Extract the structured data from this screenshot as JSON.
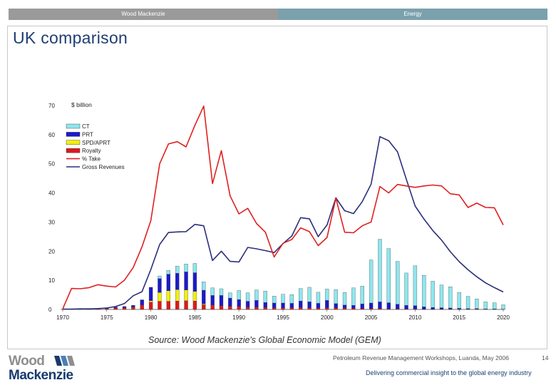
{
  "header": {
    "left_label": "Wood Mackenzie",
    "right_label": "Energy"
  },
  "title": "UK comparison",
  "source": "Source: Wood Mackenzie's Global Economic Model (GEM)",
  "footer": {
    "logo_word1": "Wood",
    "logo_word2": "Mackenzie",
    "meta": "Petroleum Revenue Management Workshops, Luanda, May 2006",
    "page": "14",
    "tagline": "Delivering commercial insight to the global energy industry"
  },
  "colors": {
    "ct": "#8ee6ee",
    "prt": "#1a1acc",
    "spd": "#f0f00a",
    "royalty": "#e01818",
    "take": "#e02020",
    "gross": "#2b2f7a",
    "header_left": "#9a9a9a",
    "header_right": "#7ba1ad"
  },
  "chart_data": {
    "type": "bar",
    "stacked_bars_with_lines": true,
    "unit_label": "$ billion",
    "ylim": [
      0,
      70
    ],
    "yticks": [
      "0",
      "10",
      "20",
      "30",
      "40",
      "50",
      "60",
      "70"
    ],
    "xlim": [
      1970,
      2020
    ],
    "xticks": [
      "1970",
      "1975",
      "1980",
      "1985",
      "1990",
      "1995",
      "2000",
      "2005",
      "2010",
      "2015",
      "2020"
    ],
    "legend": {
      "placement": "top-left",
      "items": [
        {
          "label": "CT",
          "kind": "box",
          "color": "#8ee6ee"
        },
        {
          "label": "PRT",
          "kind": "box",
          "color": "#1a1acc"
        },
        {
          "label": "SPD/APRT",
          "kind": "box",
          "color": "#f0f00a"
        },
        {
          "label": "Royalty",
          "kind": "box",
          "color": "#e01818"
        },
        {
          "label": "% Take",
          "kind": "line",
          "color": "#e02020"
        },
        {
          "label": "Gross Revenues",
          "kind": "line",
          "color": "#2b2f7a"
        }
      ]
    },
    "years": [
      1970,
      1971,
      1972,
      1973,
      1974,
      1975,
      1976,
      1977,
      1978,
      1979,
      1980,
      1981,
      1982,
      1983,
      1984,
      1985,
      1986,
      1987,
      1988,
      1989,
      1990,
      1991,
      1992,
      1993,
      1994,
      1995,
      1996,
      1997,
      1998,
      1999,
      2000,
      2001,
      2002,
      2003,
      2004,
      2005,
      2006,
      2007,
      2008,
      2009,
      2010,
      2011,
      2012,
      2013,
      2014,
      2015,
      2016,
      2017,
      2018,
      2019,
      2020
    ],
    "series": [
      {
        "name": "Royalty",
        "values": [
          0.1,
          0.1,
          0.1,
          0.1,
          0.2,
          0.3,
          0.5,
          0.6,
          0.8,
          1.5,
          2.5,
          2.8,
          2.8,
          2.9,
          3.0,
          2.9,
          1.6,
          1.5,
          1.3,
          1.1,
          1.0,
          0.8,
          0.8,
          0.7,
          0.6,
          0.6,
          0.6,
          0.7,
          0.6,
          0.5,
          0.6,
          0.6,
          0.5,
          0.4,
          0.3,
          0.3,
          0.3,
          0.2,
          0.2,
          0.2,
          0.2,
          0.1,
          0.1,
          0.1,
          0.1,
          0.1,
          0.1,
          0.1,
          0.0,
          0.0,
          0.0
        ]
      },
      {
        "name": "SPD/APRT",
        "values": [
          0,
          0,
          0,
          0,
          0,
          0,
          0,
          0,
          0,
          0,
          0.5,
          3.0,
          3.6,
          3.9,
          3.7,
          3.3,
          0.3,
          0,
          0,
          0,
          0,
          0,
          0,
          0,
          0,
          0,
          0,
          0,
          0,
          0,
          0,
          0,
          0,
          0,
          0,
          0,
          0,
          0,
          0,
          0,
          0,
          0,
          0,
          0,
          0,
          0,
          0,
          0,
          0,
          0,
          0
        ]
      },
      {
        "name": "PRT",
        "values": [
          0,
          0,
          0,
          0,
          0,
          0.3,
          0.3,
          0.4,
          0.6,
          1.8,
          4.6,
          4.8,
          5.7,
          5.6,
          6.2,
          6.4,
          4.7,
          3.3,
          3.5,
          2.8,
          2.4,
          2.0,
          2.3,
          1.7,
          1.6,
          1.6,
          1.5,
          2.2,
          2.0,
          1.6,
          2.5,
          1.4,
          1.0,
          1.0,
          1.6,
          1.9,
          2.3,
          2.1,
          1.6,
          1.2,
          1.1,
          0.8,
          0.6,
          0.5,
          0.4,
          0.3,
          0.2,
          0.2,
          0.2,
          0.2,
          0.1
        ]
      },
      {
        "name": "CT",
        "values": [
          0,
          0,
          0,
          0,
          0,
          0,
          0,
          0,
          0,
          0,
          0,
          0.9,
          1.3,
          2.5,
          2.7,
          3.2,
          2.9,
          2.6,
          2.3,
          1.8,
          3.1,
          2.9,
          3.6,
          3.9,
          2.4,
          3.0,
          3.0,
          4.3,
          5.0,
          3.8,
          3.9,
          4.8,
          4.3,
          6.0,
          6.1,
          14.8,
          21.5,
          18.6,
          14.7,
          11.1,
          13.7,
          10.8,
          9.0,
          7.8,
          7.3,
          5.4,
          4.2,
          3.3,
          2.4,
          2.1,
          1.5
        ]
      },
      {
        "name": "% Take",
        "values": [
          0.2,
          7.2,
          7.1,
          7.5,
          8.5,
          8.0,
          7.7,
          10.0,
          14.4,
          21.5,
          30.5,
          50.0,
          56.8,
          57.6,
          55.8,
          63.2,
          69.8,
          43.2,
          54.5,
          39.0,
          32.8,
          34.7,
          29.5,
          26.5,
          18.0,
          22.7,
          24.0,
          28.0,
          26.7,
          21.9,
          24.7,
          38.2,
          26.5,
          26.3,
          28.7,
          30.0,
          42.2,
          40.0,
          42.9,
          42.4,
          41.9,
          42.4,
          42.7,
          42.4,
          39.7,
          39.3,
          35.0,
          36.5,
          35.0,
          34.9,
          29.0
        ]
      },
      {
        "name": "Gross Revenues",
        "values": [
          0.1,
          0.1,
          0.2,
          0.2,
          0.3,
          0.5,
          1.0,
          2.0,
          4.7,
          6.1,
          13.7,
          22.3,
          26.4,
          26.6,
          26.7,
          29.2,
          28.7,
          16.8,
          20.0,
          16.5,
          16.3,
          21.3,
          20.8,
          20.2,
          19.5,
          22.6,
          25.2,
          31.5,
          31.1,
          25.0,
          29.0,
          38.3,
          33.9,
          32.9,
          37.0,
          43.0,
          59.3,
          57.9,
          54.1,
          44.7,
          35.5,
          31.0,
          27.1,
          23.8,
          19.8,
          16.4,
          13.6,
          11.2,
          9.1,
          7.5,
          6.0
        ]
      }
    ]
  }
}
